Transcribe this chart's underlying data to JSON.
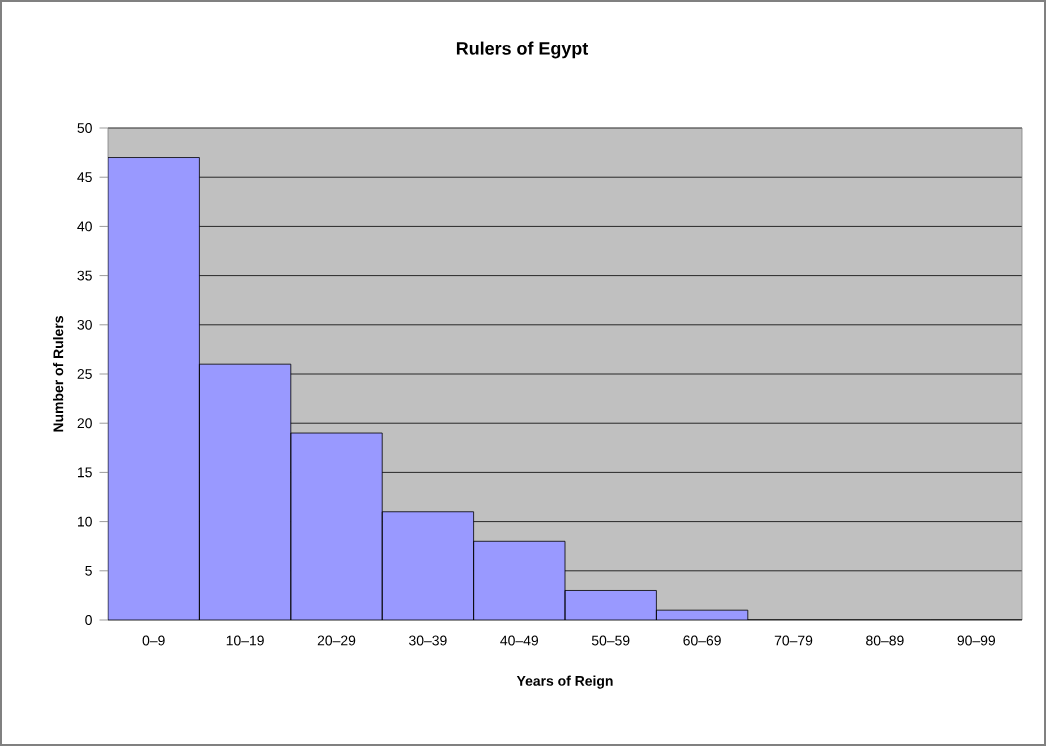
{
  "chart_data": {
    "type": "bar",
    "title": "Rulers of Egypt",
    "xlabel": "Years of Reign",
    "ylabel": "Number of Rulers",
    "categories": [
      "0–9",
      "10–19",
      "20–29",
      "30–39",
      "40–49",
      "50–59",
      "60–69",
      "70–79",
      "80–89",
      "90–99"
    ],
    "values": [
      47,
      26,
      19,
      11,
      8,
      3,
      1,
      0,
      0,
      0
    ],
    "color": "#9999ff",
    "ylim": [
      0,
      50
    ],
    "yticks": [
      0,
      5,
      10,
      15,
      20,
      25,
      30,
      35,
      40,
      45,
      50
    ],
    "grid": "y"
  }
}
